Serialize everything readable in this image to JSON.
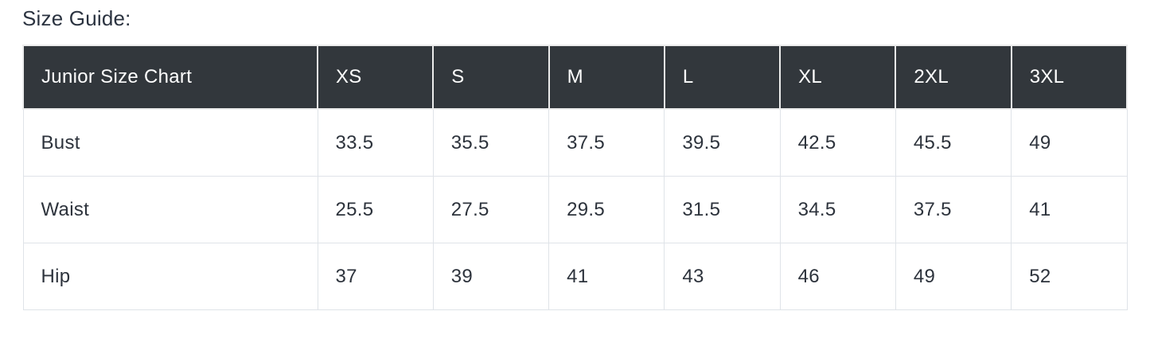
{
  "page": {
    "title": "Size Guide:"
  },
  "table": {
    "header": [
      "Junior Size Chart",
      "XS",
      "S",
      "M",
      "L",
      "XL",
      "2XL",
      "3XL"
    ],
    "rows": [
      {
        "label": "Bust",
        "values": [
          "33.5",
          "35.5",
          "37.5",
          "39.5",
          "42.5",
          "45.5",
          "49"
        ]
      },
      {
        "label": "Waist",
        "values": [
          "25.5",
          "27.5",
          "29.5",
          "31.5",
          "34.5",
          "37.5",
          "41"
        ]
      },
      {
        "label": "Hip",
        "values": [
          "37",
          "39",
          "41",
          "43",
          "46",
          "49",
          "52"
        ]
      }
    ],
    "colors": {
      "header_background": "#32373c",
      "header_text": "#ffffff",
      "body_text": "#2d333c",
      "body_border": "#dfe3e8"
    }
  },
  "chart_data": {
    "type": "table",
    "title": "Junior Size Chart",
    "categories": [
      "XS",
      "S",
      "M",
      "L",
      "XL",
      "2XL",
      "3XL"
    ],
    "series": [
      {
        "name": "Bust",
        "values": [
          33.5,
          35.5,
          37.5,
          39.5,
          42.5,
          45.5,
          49
        ]
      },
      {
        "name": "Waist",
        "values": [
          25.5,
          27.5,
          29.5,
          31.5,
          34.5,
          37.5,
          41
        ]
      },
      {
        "name": "Hip",
        "values": [
          37,
          39,
          41,
          43,
          46,
          49,
          52
        ]
      }
    ]
  }
}
